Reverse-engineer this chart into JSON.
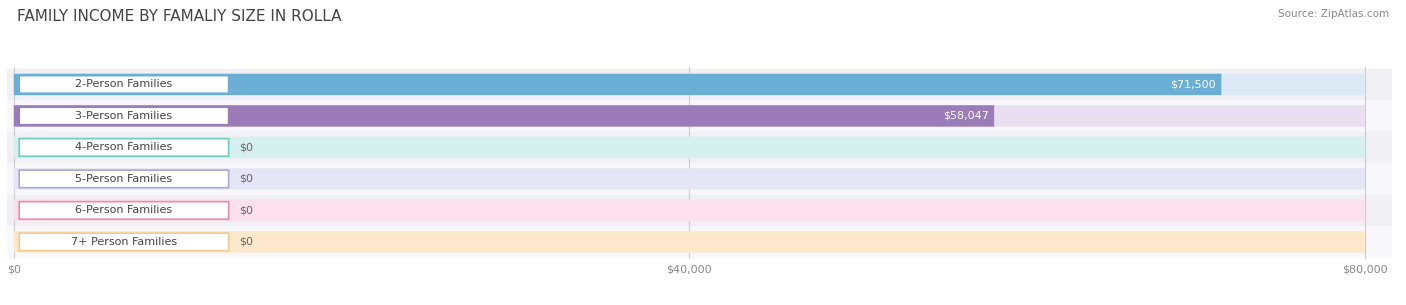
{
  "title": "FAMILY INCOME BY FAMALIY SIZE IN ROLLA",
  "source": "Source: ZipAtlas.com",
  "categories": [
    "2-Person Families",
    "3-Person Families",
    "4-Person Families",
    "5-Person Families",
    "6-Person Families",
    "7+ Person Families"
  ],
  "values": [
    71500,
    58047,
    0,
    0,
    0,
    0
  ],
  "bar_colors": [
    "#6aaed6",
    "#9b7bb8",
    "#6eccc4",
    "#a9a9d9",
    "#f08aaa",
    "#f5c98a"
  ],
  "bg_colors": [
    "#ddeaf6",
    "#e8e0f0",
    "#d5f0ee",
    "#e5e5f5",
    "#fce0eb",
    "#fde8cc"
  ],
  "row_bg_odd": "#f8f8f8",
  "row_bg_even": "#ffffff",
  "xlim_max": 80000,
  "xticks": [
    0,
    40000,
    80000
  ],
  "xtick_labels": [
    "$0",
    "$40,000",
    "$80,000"
  ],
  "value_labels": [
    "$71,500",
    "$58,047",
    "$0",
    "$0",
    "$0",
    "$0"
  ],
  "figsize": [
    14.06,
    3.05
  ],
  "dpi": 100,
  "bg_color": "#ffffff",
  "title_fontsize": 11,
  "bar_height": 0.68,
  "label_fontsize": 8,
  "value_fontsize": 8
}
